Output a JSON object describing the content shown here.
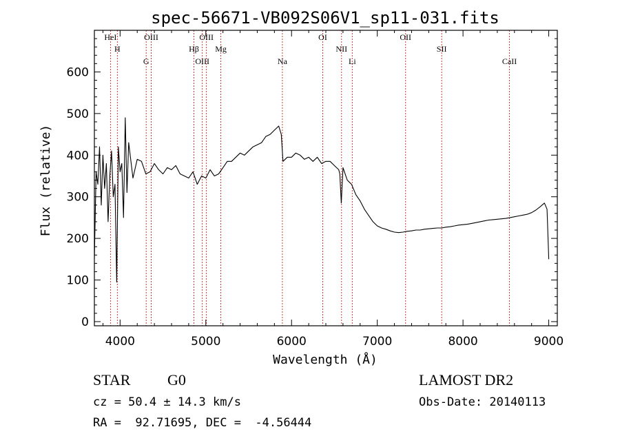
{
  "chart_data": {
    "type": "line",
    "title": "spec-56671-VB092S06V1_sp11-031.fits",
    "xlabel": "Wavelength (Å)",
    "ylabel": "Flux (relative)",
    "xlim": [
      3700,
      9100
    ],
    "ylim": [
      -10,
      700
    ],
    "xticks": [
      4000,
      5000,
      6000,
      7000,
      8000,
      9000
    ],
    "yticks": [
      0,
      100,
      200,
      300,
      400,
      500,
      600
    ],
    "grid": false,
    "line_color": "#000000",
    "marker_color": "#cc2222",
    "series": [
      {
        "x": [
          3700,
          3720,
          3740,
          3760,
          3780,
          3800,
          3820,
          3840,
          3860,
          3880,
          3900,
          3920,
          3940,
          3960,
          3980,
          4000,
          4020,
          4040,
          4060,
          4080,
          4100,
          4150,
          4200,
          4250,
          4300,
          4350,
          4400,
          4450,
          4500,
          4550,
          4600,
          4650,
          4700,
          4750,
          4800,
          4850,
          4900,
          4950,
          5000,
          5050,
          5100,
          5150,
          5200,
          5250,
          5300,
          5350,
          5400,
          5450,
          5500,
          5550,
          5600,
          5650,
          5700,
          5750,
          5800,
          5850,
          5880,
          5900,
          5950,
          6000,
          6050,
          6100,
          6150,
          6200,
          6250,
          6300,
          6350,
          6400,
          6450,
          6500,
          6550,
          6563,
          6580,
          6600,
          6650,
          6700,
          6750,
          6800,
          6850,
          6900,
          6950,
          7000,
          7050,
          7100,
          7150,
          7200,
          7250,
          7300,
          7350,
          7400,
          7450,
          7500,
          7550,
          7600,
          7650,
          7700,
          7750,
          7800,
          7850,
          7900,
          7950,
          8000,
          8050,
          8100,
          8150,
          8200,
          8250,
          8300,
          8350,
          8400,
          8450,
          8500,
          8550,
          8600,
          8650,
          8700,
          8750,
          8800,
          8850,
          8900,
          8950,
          8980,
          9000
        ],
        "y": [
          150,
          360,
          330,
          420,
          280,
          400,
          320,
          380,
          240,
          350,
          410,
          300,
          330,
          95,
          420,
          360,
          380,
          250,
          490,
          310,
          430,
          345,
          390,
          385,
          355,
          360,
          380,
          365,
          355,
          370,
          365,
          375,
          355,
          350,
          345,
          360,
          330,
          350,
          345,
          365,
          350,
          355,
          370,
          385,
          385,
          395,
          405,
          400,
          410,
          420,
          425,
          430,
          445,
          450,
          460,
          470,
          450,
          385,
          395,
          395,
          405,
          400,
          390,
          395,
          385,
          395,
          380,
          385,
          385,
          375,
          365,
          355,
          285,
          370,
          340,
          330,
          305,
          290,
          270,
          255,
          240,
          230,
          225,
          222,
          218,
          215,
          214,
          215,
          217,
          218,
          220,
          220,
          222,
          223,
          224,
          225,
          225,
          227,
          228,
          230,
          232,
          233,
          234,
          236,
          238,
          240,
          242,
          244,
          245,
          246,
          247,
          248,
          250,
          252,
          254,
          256,
          258,
          262,
          268,
          276,
          285,
          270,
          150
        ]
      }
    ],
    "line_markers": [
      {
        "label": "HeI",
        "x": 3888
      },
      {
        "label": "H",
        "x": 3968
      },
      {
        "label": "G",
        "x": 4304
      },
      {
        "label": "OIII",
        "x": 4363
      },
      {
        "label": "Hβ",
        "x": 4861
      },
      {
        "label": "OIII",
        "x": 4959
      },
      {
        "label": "OIII",
        "x": 5007
      },
      {
        "label": "Mg",
        "x": 5175
      },
      {
        "label": "Na",
        "x": 5893
      },
      {
        "label": "OI",
        "x": 6364
      },
      {
        "label": "NII",
        "x": 6583
      },
      {
        "label": "Li",
        "x": 6708
      },
      {
        "label": "OII",
        "x": 7330
      },
      {
        "label": "SII",
        "x": 7751
      },
      {
        "label": "CaII",
        "x": 8542
      }
    ]
  },
  "info": {
    "class": "STAR",
    "subclass": "G0",
    "survey": "LAMOST DR2",
    "cz": "cz = 50.4 ± 14.3 km/s",
    "obs_date": "Obs-Date: 20140113",
    "radec": "RA =  92.71695, DEC =  -4.56444"
  }
}
